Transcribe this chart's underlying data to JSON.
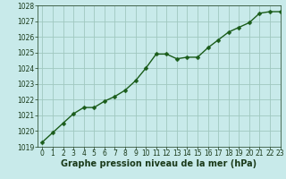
{
  "x": [
    0,
    1,
    2,
    3,
    4,
    5,
    6,
    7,
    8,
    9,
    10,
    11,
    12,
    13,
    14,
    15,
    16,
    17,
    18,
    19,
    20,
    21,
    22,
    23
  ],
  "y": [
    1019.3,
    1019.9,
    1020.5,
    1021.1,
    1021.5,
    1021.5,
    1021.9,
    1022.2,
    1022.6,
    1023.2,
    1024.0,
    1024.9,
    1024.9,
    1024.6,
    1024.7,
    1024.7,
    1025.3,
    1025.8,
    1026.3,
    1026.6,
    1026.9,
    1027.5,
    1027.6,
    1027.6
  ],
  "line_color": "#1a5c1a",
  "marker_color": "#1a5c1a",
  "bg_color": "#c8eaea",
  "grid_color": "#a0c8c0",
  "title": "Graphe pression niveau de la mer (hPa)",
  "ylim": [
    1019,
    1028
  ],
  "xlim": [
    -0.5,
    23
  ],
  "yticks": [
    1019,
    1020,
    1021,
    1022,
    1023,
    1024,
    1025,
    1026,
    1027,
    1028
  ],
  "xticks": [
    0,
    1,
    2,
    3,
    4,
    5,
    6,
    7,
    8,
    9,
    10,
    11,
    12,
    13,
    14,
    15,
    16,
    17,
    18,
    19,
    20,
    21,
    22,
    23
  ],
  "title_fontsize": 7,
  "tick_fontsize": 5.5,
  "title_color": "#1a3a1a",
  "tick_color": "#1a3a1a",
  "line_width": 1.0,
  "marker_size": 2.5
}
